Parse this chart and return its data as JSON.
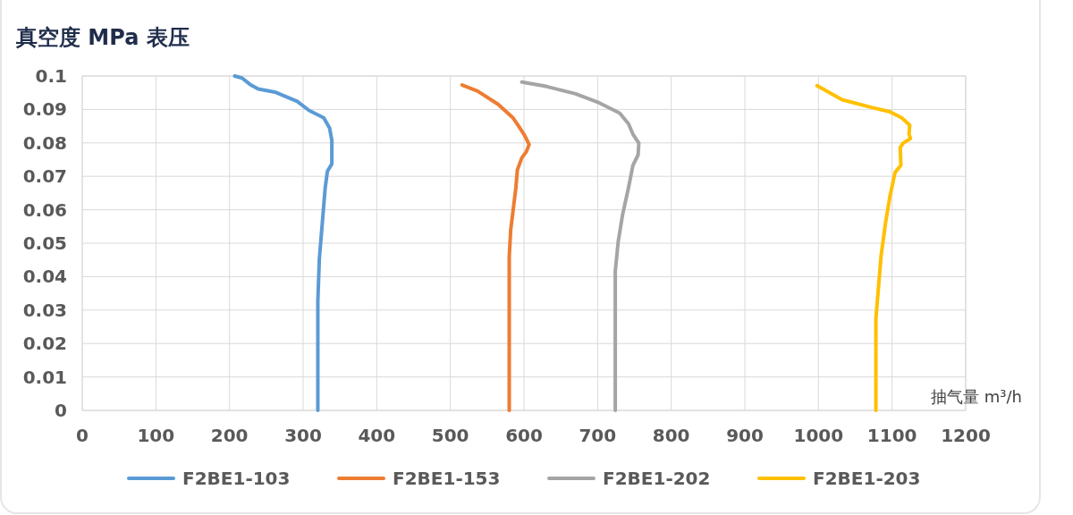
{
  "chart_data": {
    "type": "line",
    "title": "真空度 MPa 表压",
    "xlabel": "抽气量 m³/h",
    "xlim": [
      0,
      1200
    ],
    "xticks": [
      0,
      100,
      200,
      300,
      400,
      500,
      600,
      700,
      800,
      900,
      1000,
      1100,
      1200
    ],
    "ylim": [
      0,
      0.1
    ],
    "yticks": [
      0,
      0.01,
      0.02,
      0.03,
      0.04,
      0.05,
      0.06,
      0.07,
      0.08,
      0.09,
      0.1
    ],
    "grid": true,
    "legend": "bottom",
    "marker": "none",
    "line_style": "solid",
    "series": [
      {
        "name": "F2BE1-103",
        "color": "#5b9bd5",
        "x": [
          207,
          217,
          229,
          239,
          263,
          292,
          308,
          328,
          336,
          339,
          339,
          333,
          330,
          326,
          322,
          320,
          320
        ],
        "values": [
          0.1,
          0.0994,
          0.0973,
          0.0961,
          0.0951,
          0.0924,
          0.0897,
          0.0875,
          0.0844,
          0.0808,
          0.0737,
          0.0715,
          0.0666,
          0.0559,
          0.0452,
          0.0327,
          0
        ]
      },
      {
        "name": "F2BE1-153",
        "color": "#ed7d31",
        "x": [
          516,
          537,
          565,
          585,
          593,
          601,
          607,
          603,
          597,
          591,
          589,
          585,
          582,
          580,
          580,
          580
        ],
        "values": [
          0.0973,
          0.0955,
          0.0915,
          0.0875,
          0.0849,
          0.0822,
          0.0795,
          0.0773,
          0.0755,
          0.0719,
          0.0666,
          0.0594,
          0.0541,
          0.0461,
          0.0327,
          0
        ]
      },
      {
        "name": "F2BE1-202",
        "color": "#a5a5a5",
        "x": [
          597,
          630,
          670,
          702,
          730,
          742,
          748,
          756,
          755,
          748,
          742,
          734,
          728,
          724,
          724
        ],
        "values": [
          0.0982,
          0.0969,
          0.0947,
          0.092,
          0.0889,
          0.0857,
          0.0826,
          0.0799,
          0.0764,
          0.0733,
          0.0666,
          0.0586,
          0.0505,
          0.0416,
          0
        ]
      },
      {
        "name": "F2BE1-203",
        "color": "#ffc000",
        "x": [
          998,
          1032,
          1072,
          1097,
          1113,
          1124,
          1123,
          1125,
          1115,
          1111,
          1112,
          1104,
          1097,
          1091,
          1085,
          1078,
          1078
        ],
        "values": [
          0.0971,
          0.0929,
          0.0906,
          0.0893,
          0.0875,
          0.0853,
          0.0826,
          0.0813,
          0.0799,
          0.0786,
          0.0733,
          0.0711,
          0.0639,
          0.0559,
          0.0461,
          0.0273,
          0
        ]
      }
    ]
  }
}
